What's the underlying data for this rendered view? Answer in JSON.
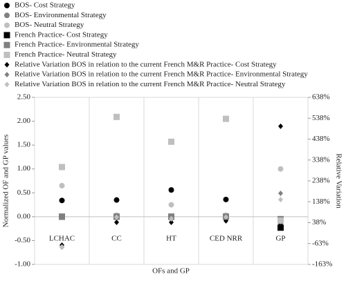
{
  "chart_data": {
    "type": "scatter",
    "x_label": "OFs and GP",
    "y_label": "Normalized OF and GP values",
    "y2_label": "Relative Variation",
    "categories": [
      "LCHAC",
      "CC",
      "HT",
      "CED NRR",
      "GP"
    ],
    "ylim": [
      -1,
      2.5
    ],
    "yticks": [
      {
        "value": -1,
        "label": "-1.00"
      },
      {
        "value": -0.5,
        "label": "-0.50"
      },
      {
        "value": 0,
        "label": "0.00"
      },
      {
        "value": 0.5,
        "label": "0.50"
      },
      {
        "value": 1,
        "label": "1.00"
      },
      {
        "value": 1.5,
        "label": "1.50"
      },
      {
        "value": 2,
        "label": "2.00"
      },
      {
        "value": 2.5,
        "label": "2.50"
      }
    ],
    "y2lim": [
      -162.5,
      637.5
    ],
    "y2ticks": [
      {
        "value": -162.5,
        "label": "-163%"
      },
      {
        "value": -62.5,
        "label": "-63%"
      },
      {
        "value": 37.5,
        "label": "38%"
      },
      {
        "value": 137.5,
        "label": "138%"
      },
      {
        "value": 237.5,
        "label": "238%"
      },
      {
        "value": 337.5,
        "label": "338%"
      },
      {
        "value": 437.5,
        "label": "438%"
      },
      {
        "value": 537.5,
        "label": "538%"
      },
      {
        "value": 637.5,
        "label": "638%"
      }
    ],
    "series": [
      {
        "name": "BOS- Cost Strategy",
        "color": "#000000",
        "marker": "circle",
        "values": [
          0.34,
          0.35,
          0.56,
          0.36,
          -0.12
        ]
      },
      {
        "name": "BOS- Environmental Strategy",
        "color": "#808080",
        "marker": "circle",
        "values": [
          0.0,
          0.0,
          -0.03,
          0.0,
          -0.1
        ]
      },
      {
        "name": "BOS- Neutral Strategy",
        "color": "#bfbfbf",
        "marker": "circle",
        "values": [
          0.65,
          0.03,
          0.25,
          0.03,
          1.0
        ]
      },
      {
        "name": "French Practice- Cost Strategy",
        "color": "#000000",
        "marker": "square",
        "values": [
          0.0,
          0.0,
          0.0,
          0.0,
          -0.23
        ]
      },
      {
        "name": "French Practice- Environmental Strategy",
        "color": "#808080",
        "marker": "square",
        "values": [
          0.0,
          0.0,
          0.0,
          0.0,
          -0.05
        ]
      },
      {
        "name": "French Practice- Neutral Strategy",
        "color": "#bfbfbf",
        "marker": "square",
        "values": [
          1.04,
          2.09,
          1.57,
          2.05,
          -0.08
        ]
      },
      {
        "name": "Relative Variation BOS in relation to the current French M&R Practice- Cost Strategy",
        "color": "#000000",
        "marker": "diamond",
        "axis": "y2",
        "values": [
          -70,
          39,
          39,
          46,
          499
        ]
      },
      {
        "name": "Relative Variation BOS in relation to the current French M&R Practice- Environmental Strategy",
        "color": "#808080",
        "marker": "diamond",
        "axis": "y2",
        "values": [
          -80,
          62,
          55,
          62,
          178
        ]
      },
      {
        "name": "Relative Variation BOS in relation to the current French M&R Practice- Neutral Strategy",
        "color": "#bfbfbf",
        "marker": "diamond",
        "axis": "y2",
        "values": [
          -78,
          64,
          57,
          64,
          148
        ]
      }
    ]
  }
}
